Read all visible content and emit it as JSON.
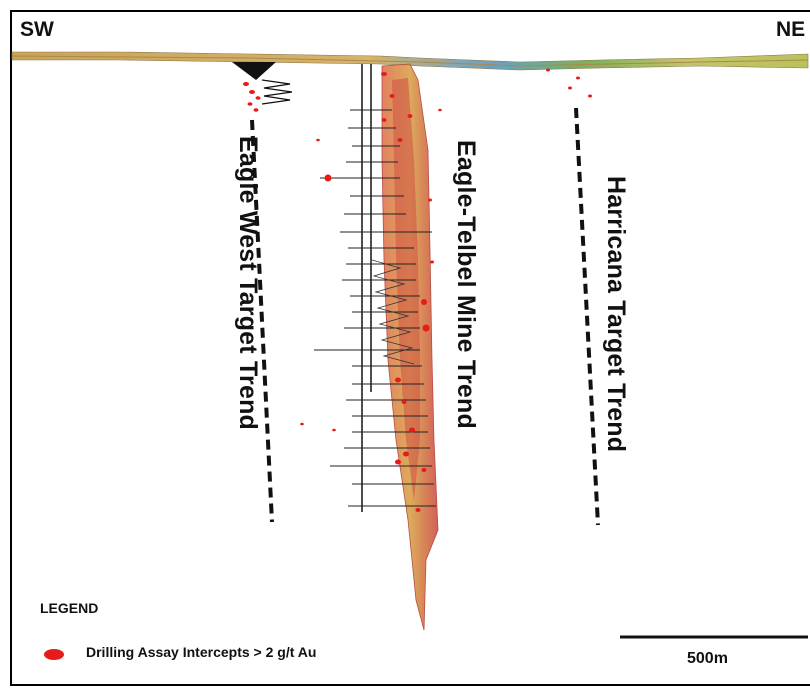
{
  "directions": {
    "left": "SW",
    "right": "NE"
  },
  "trends": [
    {
      "label": "Eagle West Target Trend"
    },
    {
      "label": "Eagle-Telbel Mine Trend"
    },
    {
      "label": "Harricana Target Trend"
    }
  ],
  "legend": {
    "title": "LEGEND",
    "item_label": "Drilling Assay Intercepts > 2 g/t Au",
    "item_color": "#e81b1b"
  },
  "scale_bar": {
    "label": "500m"
  },
  "colors": {
    "surface_topography": "#c9a45a",
    "surface_green": "#6aa84f",
    "surface_blue": "#4a7fb5",
    "ore_zone": "#d95a4a",
    "ore_zone_highlight": "#e0a04a",
    "trend_line": "#111111",
    "drill_hole": "#222222"
  }
}
